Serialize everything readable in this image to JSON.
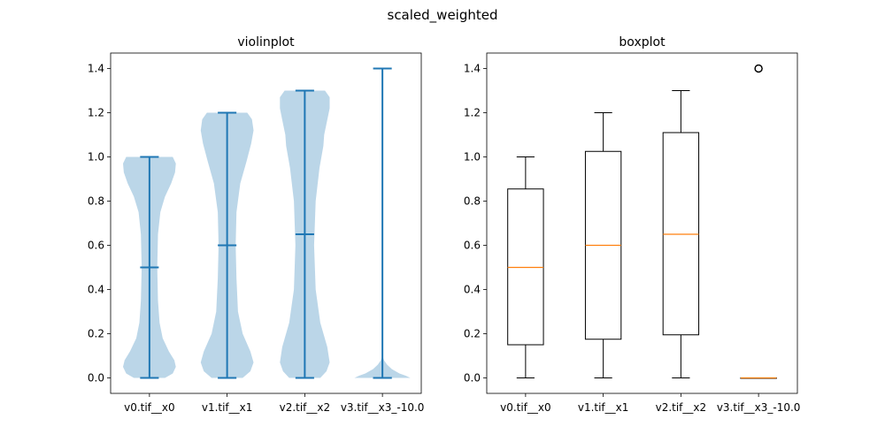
{
  "figure": {
    "suptitle": "scaled_weighted"
  },
  "colors": {
    "violin_fill": "#1f77b4",
    "violin_line": "#1f77b4",
    "box_line": "#000000",
    "median": "#ff7f0e"
  },
  "chart_data": [
    {
      "type": "violin",
      "title": "violinplot",
      "xlabel": "",
      "ylabel": "",
      "categories": [
        "v0.tif__x0",
        "v1.tif__x1",
        "v2.tif__x2",
        "v3.tif__x3_-10.0"
      ],
      "ylim": [
        -0.07,
        1.47
      ],
      "yticks": [
        0.0,
        0.2,
        0.4,
        0.6,
        0.8,
        1.0,
        1.2,
        1.4
      ],
      "ytick_labels": [
        "0.0",
        "0.2",
        "0.4",
        "0.6",
        "0.8",
        "1.0",
        "1.2",
        "1.4"
      ],
      "grid": false,
      "series": [
        {
          "min": 0.0,
          "max": 1.0,
          "mean": 0.5,
          "density": [
            [
              0.0,
              0.2
            ],
            [
              0.02,
              0.3
            ],
            [
              0.05,
              0.34
            ],
            [
              0.08,
              0.32
            ],
            [
              0.12,
              0.25
            ],
            [
              0.18,
              0.17
            ],
            [
              0.25,
              0.13
            ],
            [
              0.35,
              0.11
            ],
            [
              0.5,
              0.1
            ],
            [
              0.65,
              0.11
            ],
            [
              0.75,
              0.14
            ],
            [
              0.82,
              0.2
            ],
            [
              0.88,
              0.28
            ],
            [
              0.93,
              0.33
            ],
            [
              0.97,
              0.34
            ],
            [
              1.0,
              0.3
            ]
          ]
        },
        {
          "min": 0.0,
          "max": 1.2,
          "mean": 0.6,
          "density": [
            [
              0.0,
              0.2
            ],
            [
              0.03,
              0.3
            ],
            [
              0.07,
              0.34
            ],
            [
              0.12,
              0.3
            ],
            [
              0.2,
              0.2
            ],
            [
              0.3,
              0.14
            ],
            [
              0.45,
              0.12
            ],
            [
              0.6,
              0.11
            ],
            [
              0.75,
              0.12
            ],
            [
              0.88,
              0.17
            ],
            [
              0.98,
              0.25
            ],
            [
              1.06,
              0.31
            ],
            [
              1.12,
              0.34
            ],
            [
              1.17,
              0.32
            ],
            [
              1.2,
              0.26
            ]
          ]
        },
        {
          "min": 0.0,
          "max": 1.3,
          "mean": 0.65,
          "density": [
            [
              0.0,
              0.2
            ],
            [
              0.03,
              0.28
            ],
            [
              0.07,
              0.32
            ],
            [
              0.14,
              0.29
            ],
            [
              0.25,
              0.2
            ],
            [
              0.4,
              0.14
            ],
            [
              0.6,
              0.12
            ],
            [
              0.8,
              0.14
            ],
            [
              0.95,
              0.19
            ],
            [
              1.05,
              0.24
            ],
            [
              1.1,
              0.25
            ],
            [
              1.15,
              0.28
            ],
            [
              1.22,
              0.32
            ],
            [
              1.27,
              0.32
            ],
            [
              1.3,
              0.26
            ]
          ]
        },
        {
          "min": 0.0,
          "max": 1.4,
          "mean": 0.0,
          "density": [
            [
              0.0,
              0.36
            ],
            [
              0.01,
              0.3
            ],
            [
              0.02,
              0.22
            ],
            [
              0.04,
              0.12
            ],
            [
              0.06,
              0.06
            ],
            [
              0.08,
              0.02
            ],
            [
              0.1,
              0.0
            ]
          ]
        }
      ]
    },
    {
      "type": "box",
      "title": "boxplot",
      "xlabel": "",
      "ylabel": "",
      "categories": [
        "v0.tif__x0",
        "v1.tif__x1",
        "v2.tif__x2",
        "v3.tif__x3_-10.0"
      ],
      "ylim": [
        -0.07,
        1.47
      ],
      "yticks": [
        0.0,
        0.2,
        0.4,
        0.6,
        0.8,
        1.0,
        1.2,
        1.4
      ],
      "ytick_labels": [
        "0.0",
        "0.2",
        "0.4",
        "0.6",
        "0.8",
        "1.0",
        "1.2",
        "1.4"
      ],
      "grid": false,
      "series": [
        {
          "whislo": 0.0,
          "q1": 0.15,
          "med": 0.5,
          "q3": 0.855,
          "whishi": 1.0,
          "fliers": []
        },
        {
          "whislo": 0.0,
          "q1": 0.175,
          "med": 0.6,
          "q3": 1.025,
          "whishi": 1.2,
          "fliers": []
        },
        {
          "whislo": 0.0,
          "q1": 0.195,
          "med": 0.65,
          "q3": 1.11,
          "whishi": 1.3,
          "fliers": []
        },
        {
          "whislo": 0.0,
          "q1": 0.0,
          "med": 0.0,
          "q3": 0.0,
          "whishi": 0.0,
          "fliers": [
            1.4,
            1.4,
            1.4
          ]
        }
      ]
    }
  ]
}
